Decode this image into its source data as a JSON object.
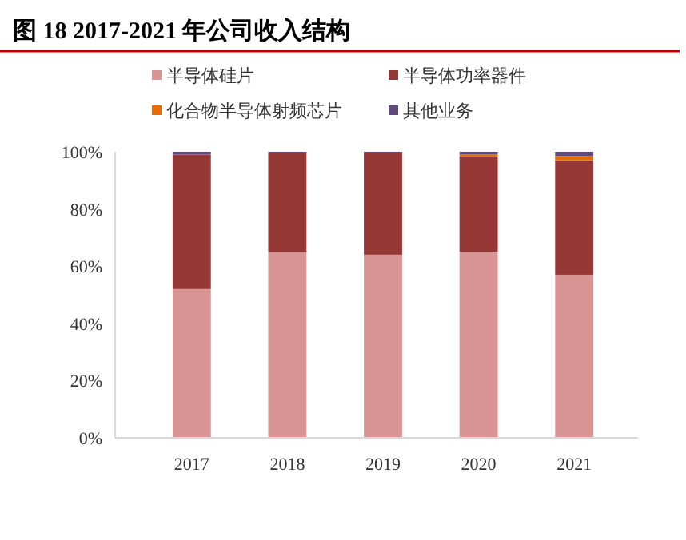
{
  "chart_data": {
    "type": "bar",
    "title": "图 18 2017-2021 年公司收入结构",
    "categories": [
      "2017",
      "2018",
      "2019",
      "2020",
      "2021"
    ],
    "stacked": true,
    "series": [
      {
        "name": "半导体硅片",
        "color": "#d99594",
        "values": [
          52,
          65,
          64,
          65,
          57
        ]
      },
      {
        "name": "半导体功率器件",
        "color": "#953735",
        "values": [
          47,
          34.5,
          35.5,
          33.5,
          40
        ]
      },
      {
        "name": "化合物半导体射频芯片",
        "color": "#e46c0a",
        "values": [
          0,
          0,
          0,
          0.5,
          1.5
        ]
      },
      {
        "name": "其他业务",
        "color": "#604a7b",
        "values": [
          1,
          0.5,
          0.5,
          1,
          1.5
        ]
      }
    ],
    "ylim": [
      0,
      100
    ],
    "yticks": [
      {
        "value": 0,
        "label": "0%"
      },
      {
        "value": 20,
        "label": "20%"
      },
      {
        "value": 40,
        "label": "40%"
      },
      {
        "value": 60,
        "label": "60%"
      },
      {
        "value": 80,
        "label": "80%"
      },
      {
        "value": 100,
        "label": "100%"
      }
    ],
    "legend": "top"
  }
}
